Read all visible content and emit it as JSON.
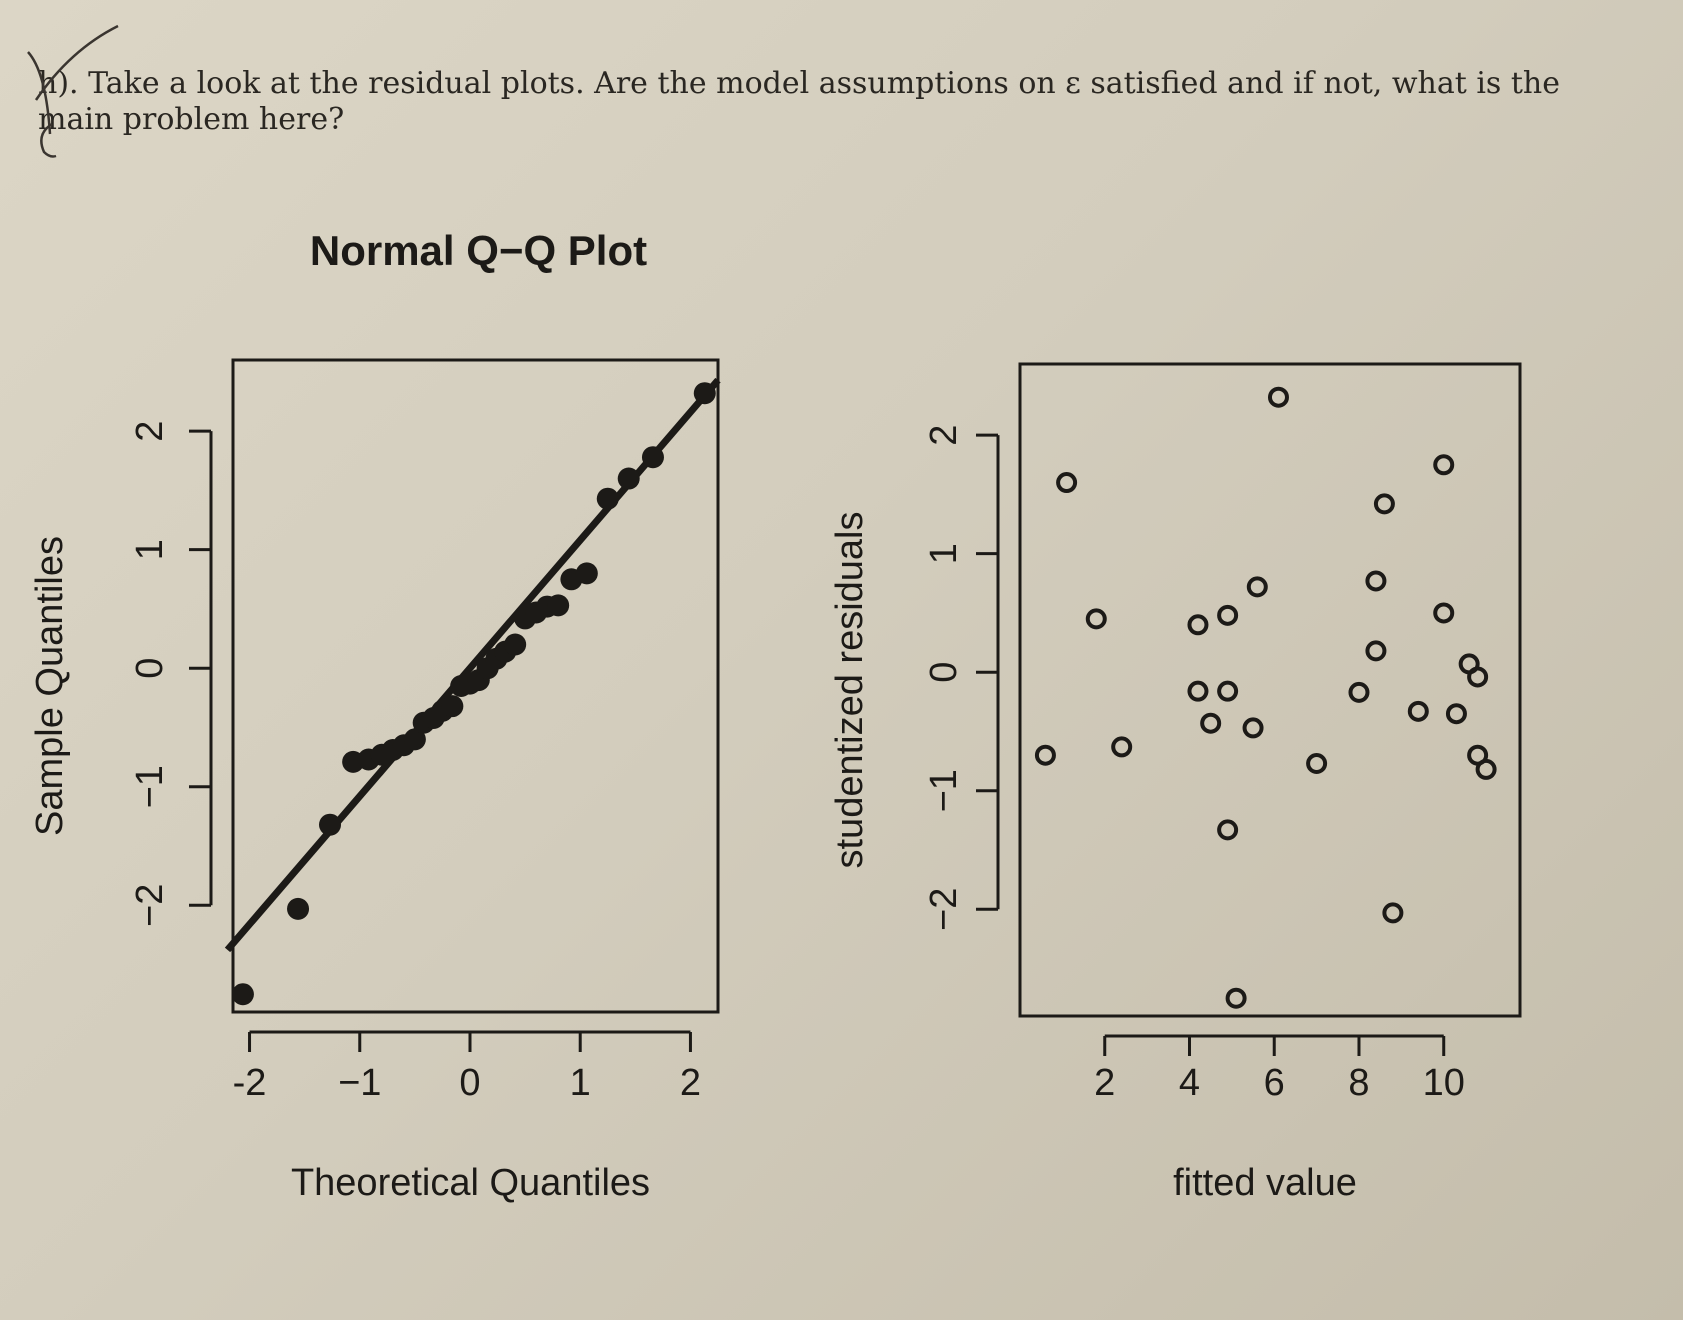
{
  "question": {
    "label": "h).",
    "text": "Take a look at the residual plots. Are the model assumptions on ε satisfied and if not, what is the main problem here?"
  },
  "chart_data": [
    {
      "type": "scatter",
      "title": "Normal Q−Q Plot",
      "xlabel": "Theoretical Quantiles",
      "ylabel": "Sample Quantiles",
      "xlim": [
        -2.15,
        2.25
      ],
      "ylim": [
        -2.9,
        2.6
      ],
      "xticks": [
        "-2",
        "−1",
        "0",
        "1",
        "2"
      ],
      "yticks": [
        "−2",
        "−1",
        "0",
        "1",
        "2"
      ],
      "marker": "filled-circle",
      "reference_line": {
        "intercept": 0.0,
        "slope": 1.08
      },
      "points": [
        [
          -2.06,
          -2.75
        ],
        [
          -1.56,
          -2.03
        ],
        [
          -1.27,
          -1.32
        ],
        [
          -1.06,
          -0.79
        ],
        [
          -0.92,
          -0.77
        ],
        [
          -0.8,
          -0.73
        ],
        [
          -0.7,
          -0.69
        ],
        [
          -0.6,
          -0.65
        ],
        [
          -0.5,
          -0.6
        ],
        [
          -0.42,
          -0.46
        ],
        [
          -0.33,
          -0.42
        ],
        [
          -0.25,
          -0.36
        ],
        [
          -0.16,
          -0.32
        ],
        [
          -0.08,
          -0.15
        ],
        [
          0.0,
          -0.13
        ],
        [
          0.08,
          -0.1
        ],
        [
          0.16,
          0.0
        ],
        [
          0.24,
          0.08
        ],
        [
          0.32,
          0.14
        ],
        [
          0.41,
          0.2
        ],
        [
          0.5,
          0.42
        ],
        [
          0.6,
          0.47
        ],
        [
          0.7,
          0.52
        ],
        [
          0.8,
          0.53
        ],
        [
          0.92,
          0.75
        ],
        [
          1.06,
          0.8
        ],
        [
          1.25,
          1.43
        ],
        [
          1.44,
          1.6
        ],
        [
          1.66,
          1.78
        ],
        [
          2.13,
          2.32
        ]
      ]
    },
    {
      "type": "scatter",
      "title": "",
      "xlabel": "fitted value",
      "ylabel": "studentized residuals",
      "xlim": [
        0.0,
        11.8
      ],
      "ylim": [
        -2.9,
        2.6
      ],
      "xticks": [
        "2",
        "4",
        "6",
        "8",
        "10"
      ],
      "yticks": [
        "−2",
        "−1",
        "0",
        "1",
        "2"
      ],
      "marker": "open-circle",
      "points": [
        [
          0.6,
          -0.7
        ],
        [
          1.1,
          1.6
        ],
        [
          1.8,
          0.45
        ],
        [
          2.4,
          -0.63
        ],
        [
          4.2,
          0.4
        ],
        [
          4.2,
          -0.16
        ],
        [
          4.5,
          -0.43
        ],
        [
          4.9,
          0.48
        ],
        [
          4.9,
          -0.16
        ],
        [
          4.9,
          -1.33
        ],
        [
          5.1,
          -2.75
        ],
        [
          5.5,
          -0.47
        ],
        [
          5.6,
          0.72
        ],
        [
          6.1,
          2.32
        ],
        [
          7.0,
          -0.77
        ],
        [
          8.0,
          -0.17
        ],
        [
          8.4,
          0.77
        ],
        [
          8.4,
          0.18
        ],
        [
          8.6,
          1.42
        ],
        [
          8.8,
          -2.03
        ],
        [
          9.4,
          -0.33
        ],
        [
          10.0,
          0.5
        ],
        [
          10.0,
          1.75
        ],
        [
          10.3,
          -0.35
        ],
        [
          10.6,
          0.07
        ],
        [
          10.8,
          -0.04
        ],
        [
          10.8,
          -0.7
        ],
        [
          11.0,
          -0.82
        ]
      ]
    }
  ]
}
